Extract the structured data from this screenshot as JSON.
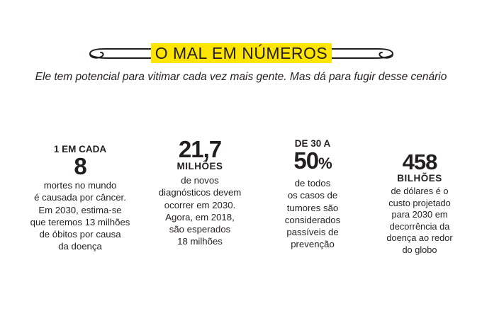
{
  "header": {
    "title": "O MAL EM NÚMEROS",
    "subtitle": "Ele tem potencial para vitimar cada vez mais gente. Mas dá para fugir desse cenário"
  },
  "colors": {
    "badge": "#ffe500",
    "text": "#231f20"
  },
  "stats": [
    {
      "kicker": "1 EM CADA",
      "number": "8",
      "body": [
        "mortes no mundo",
        "é causada por câncer.",
        "Em 2030, estima-se",
        "que teremos 13 milhões",
        "de óbitos por causa",
        "da doença"
      ]
    },
    {
      "number": "21,7",
      "unit": "MILHÕES",
      "body": [
        "de novos",
        "diagnósticos devem",
        "ocorrer em 2030.",
        "Agora, em 2018,",
        "são esperados",
        "18 milhões"
      ]
    },
    {
      "kicker": "DE 30 A",
      "number": "50",
      "percent": "%",
      "body": [
        "de todos",
        "os casos de",
        "tumores são",
        "considerados",
        "passíveis de",
        "prevenção"
      ]
    },
    {
      "number": "458",
      "unit": "BILHÕES",
      "body": [
        "de dólares é o",
        "custo projetado",
        "para 2030 em",
        "decorrência da",
        "doença ao redor",
        "do globo"
      ]
    }
  ]
}
